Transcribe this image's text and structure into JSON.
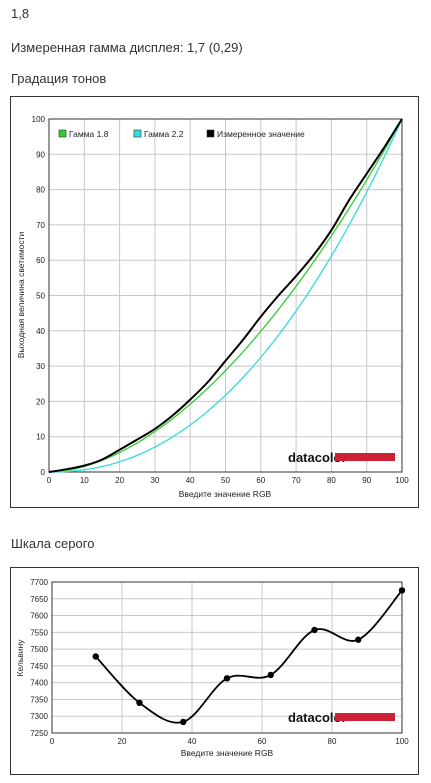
{
  "header": {
    "gamma_value": "1,8",
    "measured_gamma": "Измеренная гамма дисплея: 1,7 (0,29)",
    "tone_section": "Градация тонов",
    "gray_section": "Шкала серого"
  },
  "brand": "datacolor",
  "colors": {
    "gamma18": "#33cc33",
    "gamma22": "#33dddd",
    "measured": "#000000",
    "brand_bar": "#cc2233"
  },
  "chart_data": [
    {
      "type": "line",
      "xlabel": "Введите значение RGB",
      "ylabel": "Выходная величина светимости",
      "xlim": [
        0,
        100
      ],
      "ylim": [
        0,
        100
      ],
      "x_ticks": [
        "0",
        "10",
        "20",
        "30",
        "40",
        "50",
        "60",
        "70",
        "80",
        "90",
        "100"
      ],
      "y_ticks": [
        "0",
        "10",
        "20",
        "30",
        "40",
        "50",
        "60",
        "70",
        "80",
        "90",
        "100"
      ],
      "grid": true,
      "legend_position": "top-left",
      "series": [
        {
          "name": "Гамма 1.8",
          "color": "#33cc33",
          "formula": "gamma",
          "gamma": 1.8
        },
        {
          "name": "Гамма 2.2",
          "color": "#33dddd",
          "formula": "gamma",
          "gamma": 2.2
        },
        {
          "name": "Измеренное значение",
          "color": "#000000",
          "x": [
            0,
            5,
            10,
            15,
            20,
            25,
            30,
            35,
            40,
            45,
            50,
            55,
            60,
            65,
            70,
            75,
            80,
            85,
            90,
            95,
            100
          ],
          "y": [
            0,
            0.8,
            1.8,
            3.5,
            6.3,
            9.2,
            12.2,
            16,
            20.5,
            25.5,
            31.5,
            37.5,
            44,
            50,
            55.5,
            61.5,
            68.5,
            77,
            84.5,
            92,
            100
          ]
        }
      ]
    },
    {
      "type": "line",
      "xlabel": "Введите значение RGB",
      "ylabel": "Кельвину",
      "xlim": [
        0,
        100
      ],
      "ylim": [
        7250,
        7700
      ],
      "x_ticks": [
        "0",
        "20",
        "40",
        "60",
        "80",
        "100"
      ],
      "y_ticks": [
        "7250",
        "7300",
        "7350",
        "7400",
        "7450",
        "7500",
        "7550",
        "7600",
        "7650",
        "7700"
      ],
      "grid": true,
      "series": [
        {
          "color": "#000000",
          "x": [
            12.5,
            25,
            37.5,
            50,
            62.5,
            75,
            87.5,
            100
          ],
          "y": [
            7478,
            7340,
            7283,
            7413,
            7423,
            7557,
            7528,
            7675
          ]
        }
      ]
    }
  ]
}
